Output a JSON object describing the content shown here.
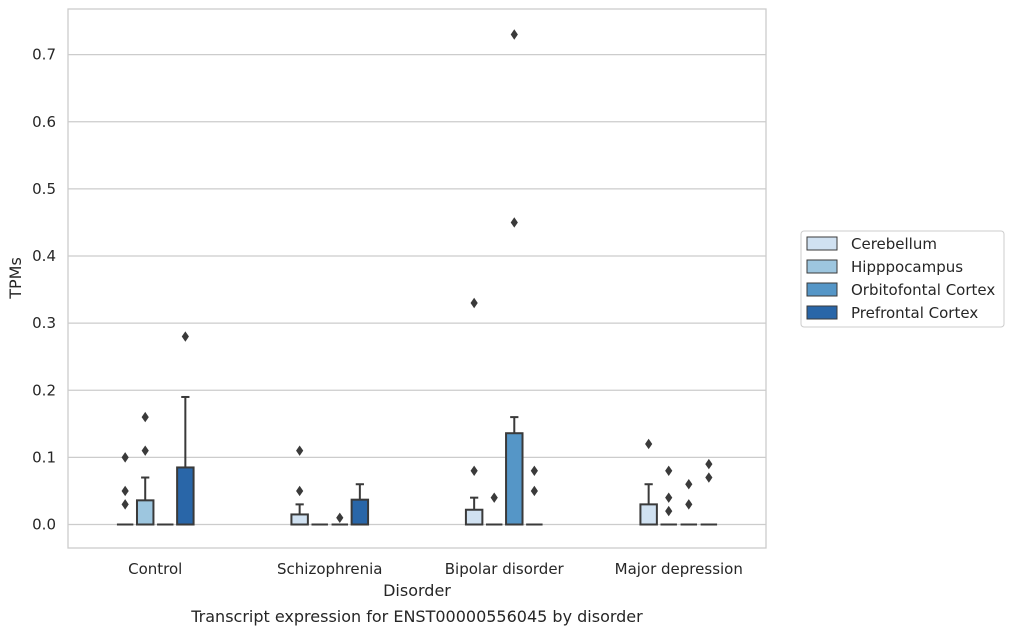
{
  "chart_data": {
    "type": "box",
    "title": "",
    "caption": "Transcript expression for ENST00000556045 by disorder",
    "xlabel": "Disorder",
    "ylabel": "TPMs",
    "ylim": [
      -0.035,
      0.768
    ],
    "yticks": [
      0.0,
      0.1,
      0.2,
      0.3,
      0.4,
      0.5,
      0.6,
      0.7
    ],
    "grid": "horizontal",
    "legend_position": "right",
    "categories": [
      "Control",
      "Schizophrenia",
      "Bipolar disorder",
      "Major depression"
    ],
    "series": [
      {
        "name": "Cerebellum",
        "color": "#d0e1f1",
        "boxes": [
          {
            "q1": 0.0,
            "median": 0.0,
            "q3": 0.0,
            "whisker_low": 0.0,
            "whisker_high": 0.0,
            "outliers": [
              0.03,
              0.05,
              0.1
            ]
          },
          {
            "q1": 0.0,
            "median": 0.0,
            "q3": 0.015,
            "whisker_low": 0.0,
            "whisker_high": 0.03,
            "outliers": [
              0.05,
              0.11
            ]
          },
          {
            "q1": 0.0,
            "median": 0.0,
            "q3": 0.022,
            "whisker_low": 0.0,
            "whisker_high": 0.04,
            "outliers": [
              0.08,
              0.33
            ]
          },
          {
            "q1": 0.0,
            "median": 0.0,
            "q3": 0.03,
            "whisker_low": 0.0,
            "whisker_high": 0.06,
            "outliers": [
              0.12
            ]
          }
        ]
      },
      {
        "name": "Hipppocampus",
        "color": "#9dc6df",
        "boxes": [
          {
            "q1": 0.0,
            "median": 0.0,
            "q3": 0.036,
            "whisker_low": 0.0,
            "whisker_high": 0.07,
            "outliers": [
              0.11,
              0.16
            ]
          },
          {
            "q1": 0.0,
            "median": 0.0,
            "q3": 0.0,
            "whisker_low": 0.0,
            "whisker_high": 0.0,
            "outliers": []
          },
          {
            "q1": 0.0,
            "median": 0.0,
            "q3": 0.0,
            "whisker_low": 0.0,
            "whisker_high": 0.0,
            "outliers": [
              0.04
            ]
          },
          {
            "q1": 0.0,
            "median": 0.0,
            "q3": 0.0,
            "whisker_low": 0.0,
            "whisker_high": 0.0,
            "outliers": [
              0.02,
              0.04,
              0.08
            ]
          }
        ]
      },
      {
        "name": "Orbitofontal Cortex",
        "color": "#5596c7",
        "boxes": [
          {
            "q1": 0.0,
            "median": 0.0,
            "q3": 0.0,
            "whisker_low": 0.0,
            "whisker_high": 0.0,
            "outliers": []
          },
          {
            "q1": 0.0,
            "median": 0.0,
            "q3": 0.0,
            "whisker_low": 0.0,
            "whisker_high": 0.0,
            "outliers": [
              0.01
            ]
          },
          {
            "q1": 0.0,
            "median": 0.0,
            "q3": 0.136,
            "whisker_low": 0.0,
            "whisker_high": 0.16,
            "outliers": [
              0.45,
              0.73
            ]
          },
          {
            "q1": 0.0,
            "median": 0.0,
            "q3": 0.0,
            "whisker_low": 0.0,
            "whisker_high": 0.0,
            "outliers": [
              0.03,
              0.06
            ]
          }
        ]
      },
      {
        "name": "Prefrontal Cortex",
        "color": "#2966a8",
        "boxes": [
          {
            "q1": 0.0,
            "median": 0.0,
            "q3": 0.085,
            "whisker_low": 0.0,
            "whisker_high": 0.19,
            "outliers": [
              0.28
            ]
          },
          {
            "q1": 0.0,
            "median": 0.0,
            "q3": 0.037,
            "whisker_low": 0.0,
            "whisker_high": 0.06,
            "outliers": []
          },
          {
            "q1": 0.0,
            "median": 0.0,
            "q3": 0.0,
            "whisker_low": 0.0,
            "whisker_high": 0.0,
            "outliers": [
              0.05,
              0.08
            ]
          },
          {
            "q1": 0.0,
            "median": 0.0,
            "q3": 0.0,
            "whisker_low": 0.0,
            "whisker_high": 0.0,
            "outliers": [
              0.07,
              0.09
            ]
          }
        ]
      }
    ]
  }
}
